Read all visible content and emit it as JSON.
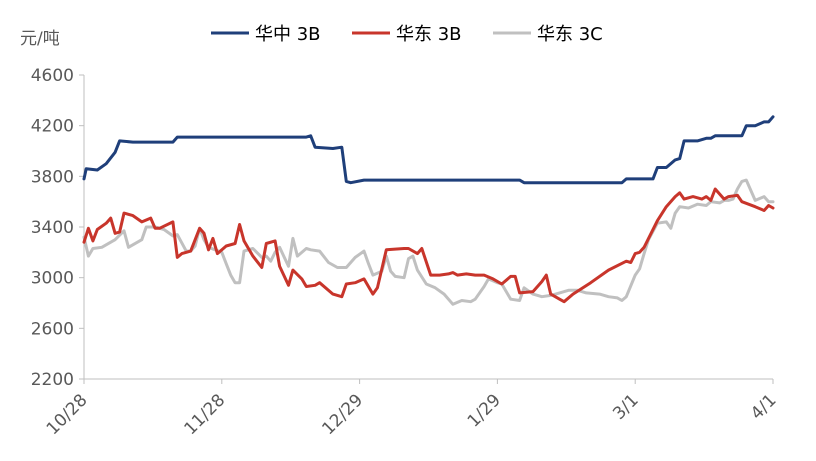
{
  "chart_data": {
    "type": "line",
    "y_unit": "元/吨",
    "ylim": [
      2200,
      4600
    ],
    "yticks": [
      2200,
      2600,
      3000,
      3400,
      3800,
      4200,
      4600
    ],
    "xticks": [
      {
        "label": "10/28",
        "x": 0
      },
      {
        "label": "11/28",
        "x": 31
      },
      {
        "label": "12/29",
        "x": 62
      },
      {
        "label": "1/29",
        "x": 93
      },
      {
        "label": "3/1",
        "x": 124
      },
      {
        "label": "4/1",
        "x": 155
      }
    ],
    "xlim": [
      0,
      155
    ],
    "grid": false,
    "legend_position": "top",
    "series": [
      {
        "name": "华中 3B",
        "color": "#1F3F7A",
        "points": [
          [
            0,
            3780
          ],
          [
            0.5,
            3860
          ],
          [
            3,
            3850
          ],
          [
            5,
            3900
          ],
          [
            7,
            3990
          ],
          [
            8,
            4080
          ],
          [
            11,
            4070
          ],
          [
            17,
            4070
          ],
          [
            20,
            4070
          ],
          [
            21,
            4110
          ],
          [
            26,
            4110
          ],
          [
            31,
            4110
          ],
          [
            41,
            4110
          ],
          [
            50,
            4110
          ],
          [
            51,
            4120
          ],
          [
            52,
            4030
          ],
          [
            56,
            4020
          ],
          [
            58,
            4030
          ],
          [
            59,
            3760
          ],
          [
            60,
            3750
          ],
          [
            63,
            3770
          ],
          [
            70,
            3770
          ],
          [
            80,
            3770
          ],
          [
            93,
            3770
          ],
          [
            98,
            3770
          ],
          [
            99,
            3750
          ],
          [
            108,
            3750
          ],
          [
            116,
            3750
          ],
          [
            121,
            3750
          ],
          [
            122,
            3780
          ],
          [
            128,
            3780
          ],
          [
            129,
            3870
          ],
          [
            131,
            3870
          ],
          [
            133,
            3930
          ],
          [
            134,
            3940
          ],
          [
            135,
            4080
          ],
          [
            138,
            4080
          ],
          [
            140,
            4100
          ],
          [
            141,
            4100
          ],
          [
            142,
            4120
          ],
          [
            144,
            4120
          ],
          [
            148,
            4120
          ],
          [
            149,
            4200
          ],
          [
            151,
            4200
          ],
          [
            153,
            4230
          ],
          [
            154,
            4230
          ],
          [
            155,
            4270
          ]
        ]
      },
      {
        "name": "华东 3B",
        "color": "#C8352B",
        "points": [
          [
            0,
            3280
          ],
          [
            1,
            3390
          ],
          [
            2,
            3290
          ],
          [
            3,
            3380
          ],
          [
            5,
            3430
          ],
          [
            6,
            3470
          ],
          [
            7,
            3350
          ],
          [
            8,
            3360
          ],
          [
            9,
            3510
          ],
          [
            11,
            3490
          ],
          [
            13,
            3440
          ],
          [
            15,
            3470
          ],
          [
            16,
            3390
          ],
          [
            17,
            3390
          ],
          [
            20,
            3440
          ],
          [
            21,
            3160
          ],
          [
            22,
            3190
          ],
          [
            24,
            3210
          ],
          [
            26,
            3390
          ],
          [
            27,
            3350
          ],
          [
            28,
            3220
          ],
          [
            29,
            3310
          ],
          [
            30,
            3190
          ],
          [
            32,
            3250
          ],
          [
            34,
            3270
          ],
          [
            35,
            3420
          ],
          [
            36,
            3290
          ],
          [
            38,
            3170
          ],
          [
            40,
            3080
          ],
          [
            41,
            3270
          ],
          [
            43,
            3290
          ],
          [
            44,
            3090
          ],
          [
            46,
            2940
          ],
          [
            47,
            3060
          ],
          [
            49,
            2990
          ],
          [
            50,
            2930
          ],
          [
            52,
            2940
          ],
          [
            53,
            2960
          ],
          [
            56,
            2870
          ],
          [
            58,
            2850
          ],
          [
            59,
            2950
          ],
          [
            61,
            2960
          ],
          [
            63,
            2990
          ],
          [
            65,
            2870
          ],
          [
            66,
            2920
          ],
          [
            68,
            3220
          ],
          [
            72,
            3230
          ],
          [
            73,
            3230
          ],
          [
            75,
            3190
          ],
          [
            76,
            3230
          ],
          [
            78,
            3020
          ],
          [
            80,
            3020
          ],
          [
            82,
            3030
          ],
          [
            83,
            3040
          ],
          [
            84,
            3020
          ],
          [
            86,
            3030
          ],
          [
            88,
            3020
          ],
          [
            90,
            3020
          ],
          [
            92,
            2990
          ],
          [
            94,
            2950
          ],
          [
            96,
            3010
          ],
          [
            97,
            3010
          ],
          [
            98,
            2880
          ],
          [
            101,
            2890
          ],
          [
            103,
            2970
          ],
          [
            104,
            3020
          ],
          [
            105,
            2870
          ],
          [
            107,
            2830
          ],
          [
            108,
            2810
          ],
          [
            110,
            2870
          ],
          [
            114,
            2960
          ],
          [
            118,
            3060
          ],
          [
            122,
            3130
          ],
          [
            123,
            3120
          ],
          [
            124,
            3190
          ],
          [
            125,
            3200
          ],
          [
            126,
            3240
          ],
          [
            129,
            3450
          ],
          [
            131,
            3560
          ],
          [
            133,
            3640
          ],
          [
            134,
            3670
          ],
          [
            135,
            3620
          ],
          [
            137,
            3640
          ],
          [
            139,
            3620
          ],
          [
            140,
            3640
          ],
          [
            141,
            3610
          ],
          [
            142,
            3700
          ],
          [
            144,
            3620
          ],
          [
            145,
            3640
          ],
          [
            147,
            3650
          ],
          [
            148,
            3600
          ],
          [
            151,
            3560
          ],
          [
            153,
            3530
          ],
          [
            154,
            3570
          ],
          [
            155,
            3550
          ]
        ]
      },
      {
        "name": "华东 3C",
        "color": "#C0C0C0",
        "points": [
          [
            0,
            3320
          ],
          [
            1,
            3170
          ],
          [
            2,
            3230
          ],
          [
            4,
            3240
          ],
          [
            7,
            3300
          ],
          [
            9,
            3370
          ],
          [
            10,
            3240
          ],
          [
            13,
            3300
          ],
          [
            14,
            3400
          ],
          [
            16,
            3400
          ],
          [
            18,
            3380
          ],
          [
            20,
            3330
          ],
          [
            21,
            3340
          ],
          [
            23,
            3210
          ],
          [
            24,
            3210
          ],
          [
            25,
            3250
          ],
          [
            26,
            3390
          ],
          [
            27,
            3300
          ],
          [
            28,
            3240
          ],
          [
            31,
            3200
          ],
          [
            32,
            3110
          ],
          [
            33,
            3020
          ],
          [
            34,
            2960
          ],
          [
            35,
            2960
          ],
          [
            36,
            3210
          ],
          [
            38,
            3230
          ],
          [
            40,
            3160
          ],
          [
            41,
            3170
          ],
          [
            42,
            3130
          ],
          [
            43,
            3200
          ],
          [
            44,
            3240
          ],
          [
            46,
            3090
          ],
          [
            47,
            3310
          ],
          [
            48,
            3170
          ],
          [
            50,
            3230
          ],
          [
            51,
            3220
          ],
          [
            53,
            3210
          ],
          [
            55,
            3120
          ],
          [
            57,
            3080
          ],
          [
            59,
            3080
          ],
          [
            61,
            3160
          ],
          [
            63,
            3210
          ],
          [
            64,
            3110
          ],
          [
            65,
            3020
          ],
          [
            67,
            3050
          ],
          [
            68,
            3170
          ],
          [
            69,
            3050
          ],
          [
            70,
            3010
          ],
          [
            72,
            3000
          ],
          [
            73,
            3150
          ],
          [
            74,
            3170
          ],
          [
            75,
            3060
          ],
          [
            77,
            2950
          ],
          [
            79,
            2920
          ],
          [
            81,
            2870
          ],
          [
            83,
            2790
          ],
          [
            85,
            2820
          ],
          [
            87,
            2810
          ],
          [
            88,
            2830
          ],
          [
            90,
            2930
          ],
          [
            91,
            2990
          ],
          [
            93,
            2960
          ],
          [
            94,
            2950
          ],
          [
            96,
            2830
          ],
          [
            98,
            2820
          ],
          [
            99,
            2920
          ],
          [
            101,
            2870
          ],
          [
            103,
            2850
          ],
          [
            105,
            2860
          ],
          [
            107,
            2880
          ],
          [
            109,
            2900
          ],
          [
            111,
            2900
          ],
          [
            113,
            2880
          ],
          [
            116,
            2870
          ],
          [
            118,
            2850
          ],
          [
            120,
            2840
          ],
          [
            121,
            2820
          ],
          [
            122,
            2850
          ],
          [
            124,
            3020
          ],
          [
            125,
            3070
          ],
          [
            126,
            3190
          ],
          [
            127,
            3300
          ],
          [
            129,
            3430
          ],
          [
            131,
            3440
          ],
          [
            132,
            3390
          ],
          [
            133,
            3510
          ],
          [
            134,
            3560
          ],
          [
            136,
            3550
          ],
          [
            138,
            3580
          ],
          [
            140,
            3570
          ],
          [
            141,
            3600
          ],
          [
            143,
            3590
          ],
          [
            144,
            3610
          ],
          [
            145,
            3610
          ],
          [
            146,
            3620
          ],
          [
            147,
            3700
          ],
          [
            148,
            3760
          ],
          [
            149,
            3770
          ],
          [
            151,
            3610
          ],
          [
            153,
            3640
          ],
          [
            154,
            3600
          ],
          [
            155,
            3600
          ]
        ]
      }
    ]
  }
}
